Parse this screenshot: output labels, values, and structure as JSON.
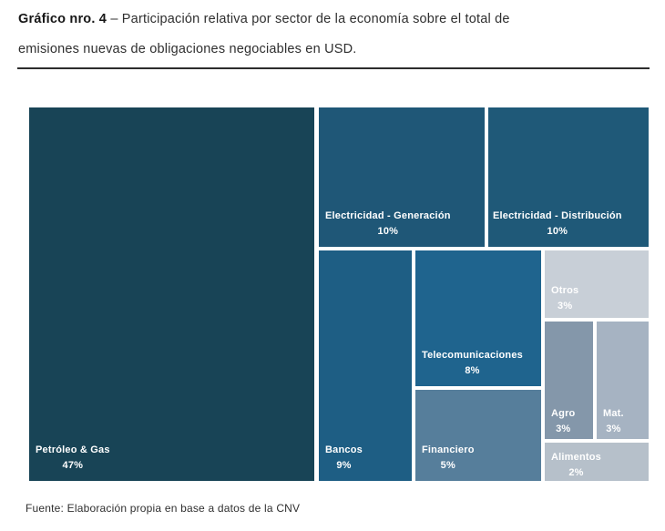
{
  "title": {
    "bold": "Gráfico nro. 4",
    "line1_rest": "– Participación relativa por sector de la economía sobre el total de",
    "line2": "emisiones nuevas de obligaciones negociables en USD."
  },
  "footer": {
    "source": "Fuente: Elaboración propia en base a datos de la CNV"
  },
  "chart_data": {
    "type": "treemap",
    "title": "Gráfico nro. 4 – Participación relativa por sector de la economía sobre el total de emisiones nuevas de obligaciones negociables en USD.",
    "source": "Fuente: Elaboración propia en base a datos de la CNV",
    "unit": "%",
    "legend": "none",
    "label_text_color": "#ffffff",
    "tiles": [
      {
        "label": "Petróleo & Gas",
        "pct": "47%",
        "value": 47,
        "color": "#184456"
      },
      {
        "label": "Electricidad - Generación",
        "pct": "10%",
        "value": 10,
        "color": "#1f5777"
      },
      {
        "label": "Electricidad - Distribución",
        "pct": "10%",
        "value": 10,
        "color": "#1f5978"
      },
      {
        "label": "Bancos",
        "pct": "9%",
        "value": 9,
        "color": "#1e5e84"
      },
      {
        "label": "Telecomunicaciones",
        "pct": "8%",
        "value": 8,
        "color": "#1f648e"
      },
      {
        "label": "Financiero",
        "pct": "5%",
        "value": 5,
        "color": "#567e9b"
      },
      {
        "label": "Otros",
        "pct": "3%",
        "value": 3,
        "color": "#c8cfd7"
      },
      {
        "label": "Agro",
        "pct": "3%",
        "value": 3,
        "color": "#8497aa"
      },
      {
        "label": "Mat.",
        "pct": "3%",
        "value": 3,
        "color": "#a6b3c2"
      },
      {
        "label": "Alimentos",
        "pct": "2%",
        "value": 2,
        "color": "#b6c0ca"
      }
    ]
  }
}
